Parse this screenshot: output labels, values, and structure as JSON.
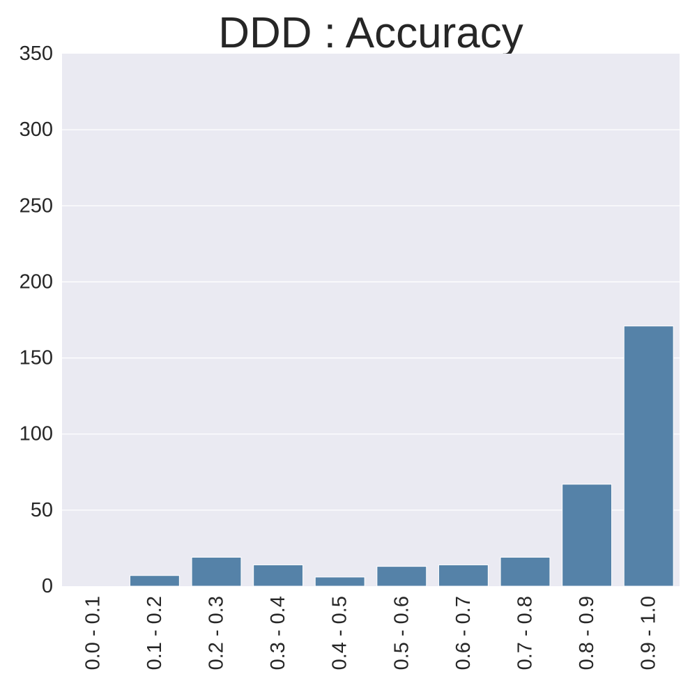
{
  "chart_data": {
    "type": "bar",
    "title": "DDD : Accuracy",
    "xlabel": "",
    "ylabel": "",
    "categories": [
      "0.0 - 0.1",
      "0.1 - 0.2",
      "0.2 - 0.3",
      "0.3 - 0.4",
      "0.4 - 0.5",
      "0.5 - 0.6",
      "0.6 - 0.7",
      "0.7 - 0.8",
      "0.8 - 0.9",
      "0.9 - 1.0"
    ],
    "values": [
      0,
      7,
      19,
      14,
      6,
      13,
      14,
      19,
      67,
      171
    ],
    "ylim": [
      0,
      350
    ],
    "yticks": [
      0,
      50,
      100,
      150,
      200,
      250,
      300,
      350
    ],
    "grid": true,
    "bar_color": "#5582a8",
    "background_color": "#eaeaf2"
  }
}
